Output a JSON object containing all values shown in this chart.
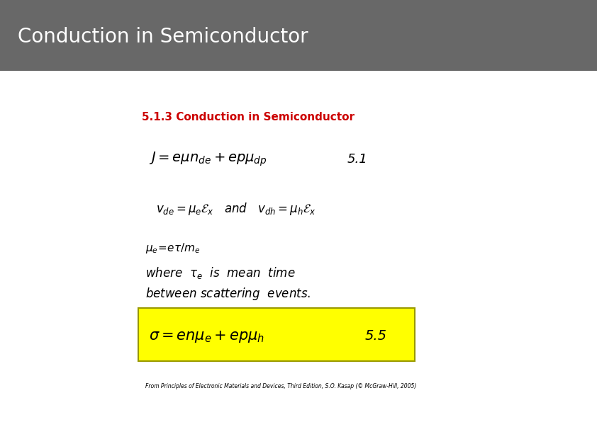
{
  "title": "Conduction in Semiconductor",
  "title_bg_color": "#686868",
  "title_text_color": "#ffffff",
  "title_fontsize": 20,
  "bg_color": "#ffffff",
  "section_title": "5.1.3 Conduction in Semiconductor",
  "section_title_color": "#cc0000",
  "section_title_fontsize": 11,
  "eq1_label": "5.1",
  "eq2_label": "5.5",
  "yellow_box_color": "#ffff00",
  "yellow_box_edge": "#999900",
  "footnote": "From Principles of Electronic Materials and Devices, Third Edition, S.O. Kasap (© McGraw-Hill, 2005)"
}
